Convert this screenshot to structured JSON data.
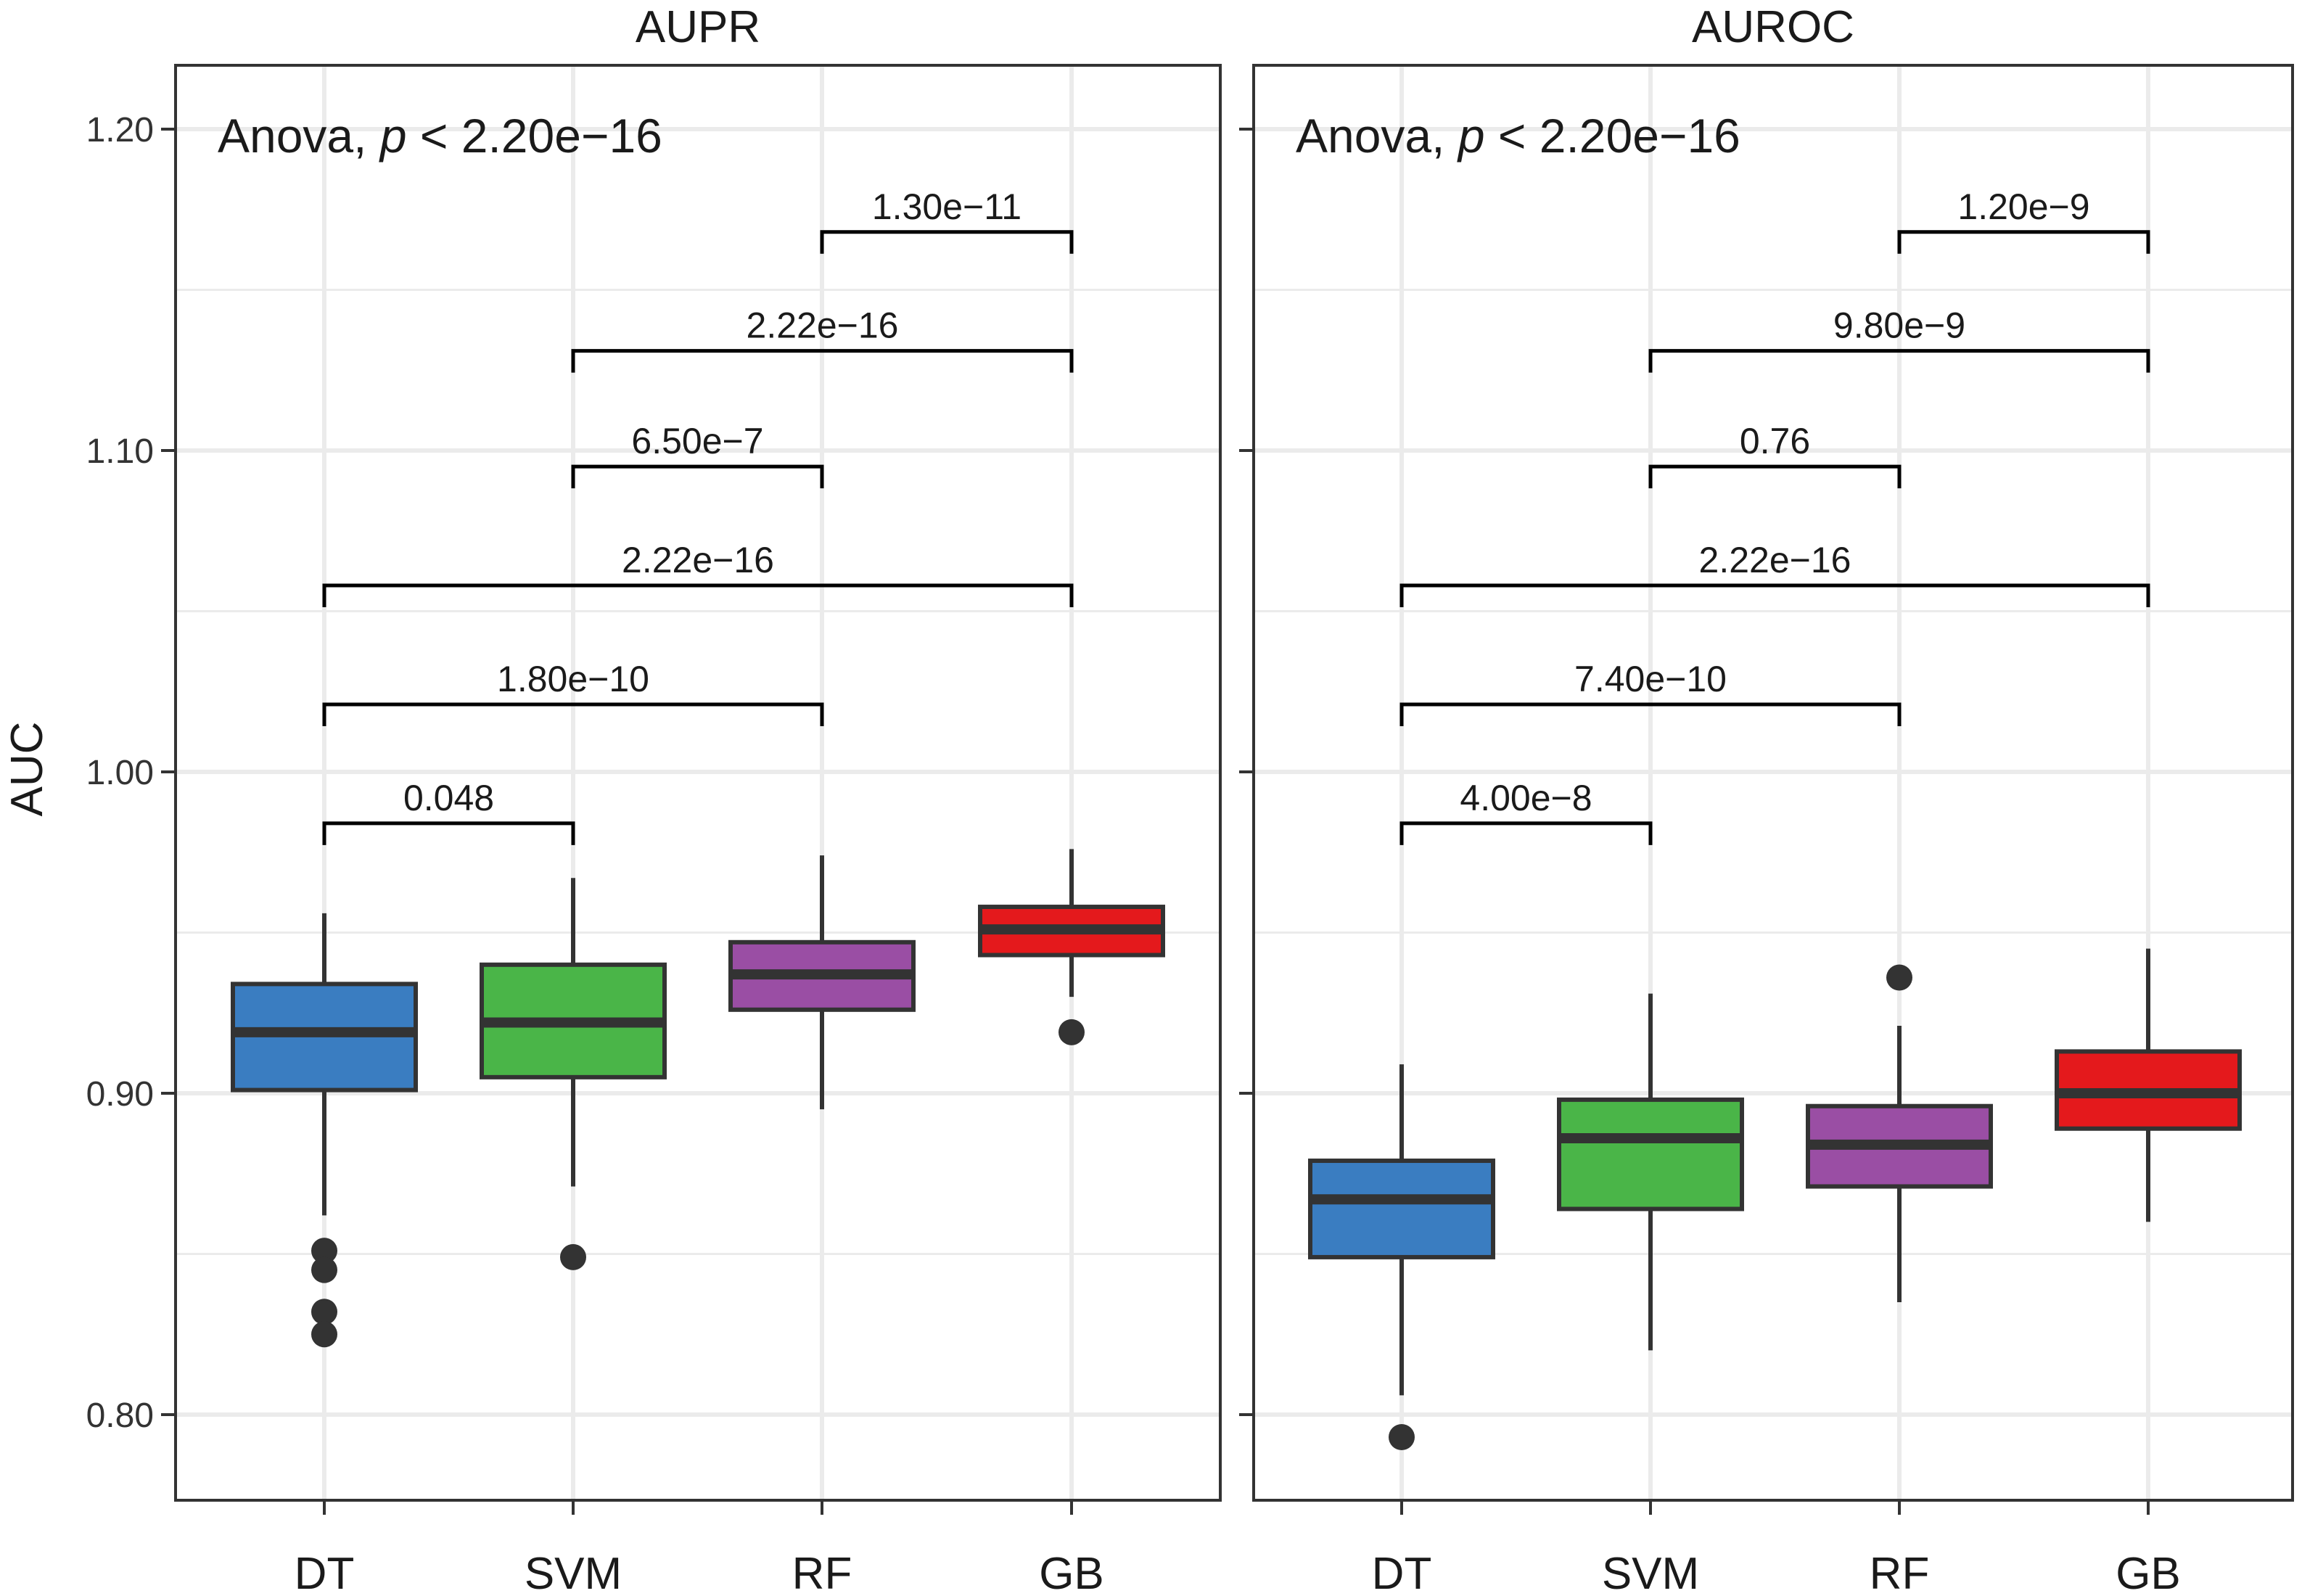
{
  "colors": {
    "DT": "#3a7dc1",
    "SVM": "#4ab548",
    "RF": "#9a4ea4",
    "GB": "#e4191c",
    "box_stroke": "#333333",
    "grid": "#ebebeb",
    "panel_border": "#333333",
    "text": "#1a1a1a"
  },
  "chart_data": [
    {
      "type": "box",
      "title": "AUPR",
      "ylabel": "AUC",
      "ylim": [
        0.775,
        1.21
      ],
      "yticks": [
        0.8,
        0.9,
        1.0,
        1.1,
        1.2
      ],
      "ytick_labels": [
        "0.80",
        "0.90",
        "1.00",
        "1.10",
        "1.20"
      ],
      "categories": [
        "DT",
        "SVM",
        "RF",
        "GB"
      ],
      "boxes": [
        {
          "category": "DT",
          "whisker_low": 0.862,
          "q1": 0.901,
          "median": 0.919,
          "q3": 0.934,
          "whisker_high": 0.956,
          "outliers": [
            0.851,
            0.845,
            0.832,
            0.825
          ]
        },
        {
          "category": "SVM",
          "whisker_low": 0.871,
          "q1": 0.905,
          "median": 0.922,
          "q3": 0.94,
          "whisker_high": 0.967,
          "outliers": [
            0.849
          ]
        },
        {
          "category": "RF",
          "whisker_low": 0.895,
          "q1": 0.926,
          "median": 0.937,
          "q3": 0.947,
          "whisker_high": 0.974,
          "outliers": []
        },
        {
          "category": "GB",
          "whisker_low": 0.93,
          "q1": 0.943,
          "median": 0.951,
          "q3": 0.958,
          "whisker_high": 0.976,
          "outliers": [
            0.919
          ]
        }
      ],
      "anova": {
        "prefix": "Anova, ",
        "p": "p",
        "rest": " < 2.20e−16"
      },
      "comparisons": [
        {
          "from": "DT",
          "to": "SVM",
          "y": 0.984,
          "label": "0.048"
        },
        {
          "from": "DT",
          "to": "RF",
          "y": 1.021,
          "label": "1.80e−10"
        },
        {
          "from": "DT",
          "to": "GB",
          "y": 1.058,
          "label": "2.22e−16"
        },
        {
          "from": "SVM",
          "to": "RF",
          "y": 1.095,
          "label": "6.50e−7"
        },
        {
          "from": "SVM",
          "to": "GB",
          "y": 1.131,
          "label": "2.22e−16"
        },
        {
          "from": "RF",
          "to": "GB",
          "y": 1.168,
          "label": "1.30e−11"
        }
      ]
    },
    {
      "type": "box",
      "title": "AUROC",
      "ylim": [
        0.775,
        1.21
      ],
      "yticks": [
        0.8,
        0.9,
        1.0,
        1.1,
        1.2
      ],
      "categories": [
        "DT",
        "SVM",
        "RF",
        "GB"
      ],
      "boxes": [
        {
          "category": "DT",
          "whisker_low": 0.806,
          "q1": 0.849,
          "median": 0.867,
          "q3": 0.879,
          "whisker_high": 0.909,
          "outliers": [
            0.793
          ]
        },
        {
          "category": "SVM",
          "whisker_low": 0.82,
          "q1": 0.864,
          "median": 0.886,
          "q3": 0.898,
          "whisker_high": 0.931,
          "outliers": []
        },
        {
          "category": "RF",
          "whisker_low": 0.835,
          "q1": 0.871,
          "median": 0.884,
          "q3": 0.896,
          "whisker_high": 0.921,
          "outliers": [
            0.936
          ]
        },
        {
          "category": "GB",
          "whisker_low": 0.86,
          "q1": 0.889,
          "median": 0.9,
          "q3": 0.913,
          "whisker_high": 0.945,
          "outliers": []
        }
      ],
      "anova": {
        "prefix": "Anova, ",
        "p": "p",
        "rest": " < 2.20e−16"
      },
      "comparisons": [
        {
          "from": "DT",
          "to": "SVM",
          "y": 0.984,
          "label": "4.00e−8"
        },
        {
          "from": "DT",
          "to": "RF",
          "y": 1.021,
          "label": "7.40e−10"
        },
        {
          "from": "DT",
          "to": "GB",
          "y": 1.058,
          "label": "2.22e−16"
        },
        {
          "from": "SVM",
          "to": "RF",
          "y": 1.095,
          "label": "0.76"
        },
        {
          "from": "SVM",
          "to": "GB",
          "y": 1.131,
          "label": "9.80e−9"
        },
        {
          "from": "RF",
          "to": "GB",
          "y": 1.168,
          "label": "1.20e−9"
        }
      ]
    }
  ]
}
